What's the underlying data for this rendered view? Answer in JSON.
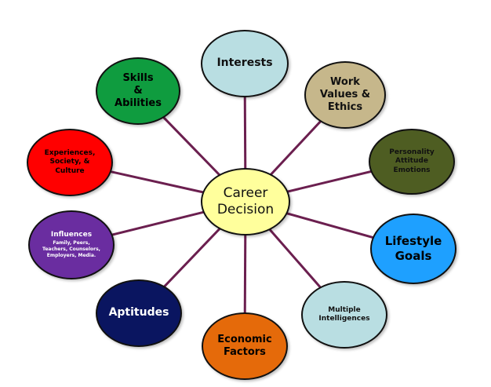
{
  "diagram": {
    "center": {
      "label": "Career\nDecision",
      "fill": "#ffff9c",
      "text_color": "#111111"
    },
    "line_color": "#6b1f4f",
    "nodes": [
      {
        "key": "interests",
        "label": "Interests",
        "fill": "#b9dee2",
        "text_color": "#111111"
      },
      {
        "key": "work",
        "label": "Work\nValues &\nEthics",
        "fill": "#c6b78b",
        "text_color": "#111111"
      },
      {
        "key": "skills",
        "label": "Skills\n&\nAbilities",
        "fill": "#0f9c3f",
        "text_color": "#000000"
      },
      {
        "key": "experiences",
        "label": "Experiences,\nSociety, &\nCulture",
        "fill": "#ff0000",
        "text_color": "#000000"
      },
      {
        "key": "personality",
        "label": "Personality\nAttitude\nEmotions",
        "fill": "#4e5d22",
        "text_color": "#111111"
      },
      {
        "key": "influences",
        "label": "Influences",
        "sub": "Family, Peers,\nTeachers, Counselors,\nEmployers, Media.",
        "fill": "#6a2da0",
        "text_color": "#ffffff"
      },
      {
        "key": "lifestyle",
        "label": "Lifestyle\nGoals",
        "fill": "#1ea0ff",
        "text_color": "#000000"
      },
      {
        "key": "aptitudes",
        "label": "Aptitudes",
        "fill": "#0a1560",
        "text_color": "#ffffff"
      },
      {
        "key": "multiple",
        "label": "Multiple\nIntelligences",
        "fill": "#b9dee2",
        "text_color": "#111111"
      },
      {
        "key": "economic",
        "label": "Economic\nFactors",
        "fill": "#e56a0a",
        "text_color": "#000000"
      }
    ]
  }
}
